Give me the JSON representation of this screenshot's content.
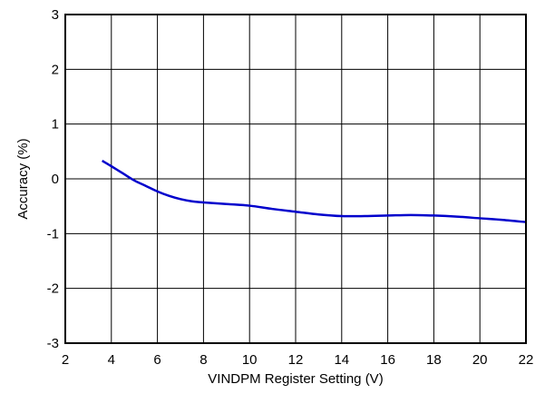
{
  "chart_data": {
    "type": "line",
    "title": "",
    "xlabel": "VINDPM Register Setting (V)",
    "ylabel": "Accuracy (%)",
    "xlim": [
      2,
      22
    ],
    "ylim": [
      -3,
      3
    ],
    "xticks": [
      2,
      4,
      6,
      8,
      10,
      12,
      14,
      16,
      18,
      20,
      22
    ],
    "yticks": [
      -3,
      -2,
      -1,
      0,
      1,
      2,
      3
    ],
    "grid": true,
    "legend": "none",
    "series": [
      {
        "color": "#0000cc",
        "x": [
          3.6,
          4.0,
          4.5,
          5.0,
          5.5,
          6.0,
          6.5,
          7.0,
          7.5,
          8.0,
          9.0,
          10.0,
          11.0,
          12.0,
          13.0,
          14.0,
          15.0,
          16.0,
          17.0,
          18.0,
          19.0,
          20.0,
          21.0,
          22.0
        ],
        "y": [
          0.33,
          0.23,
          0.1,
          -0.03,
          -0.13,
          -0.23,
          -0.31,
          -0.37,
          -0.41,
          -0.43,
          -0.46,
          -0.49,
          -0.55,
          -0.6,
          -0.65,
          -0.68,
          -0.68,
          -0.67,
          -0.66,
          -0.67,
          -0.69,
          -0.72,
          -0.75,
          -0.79
        ]
      }
    ]
  }
}
